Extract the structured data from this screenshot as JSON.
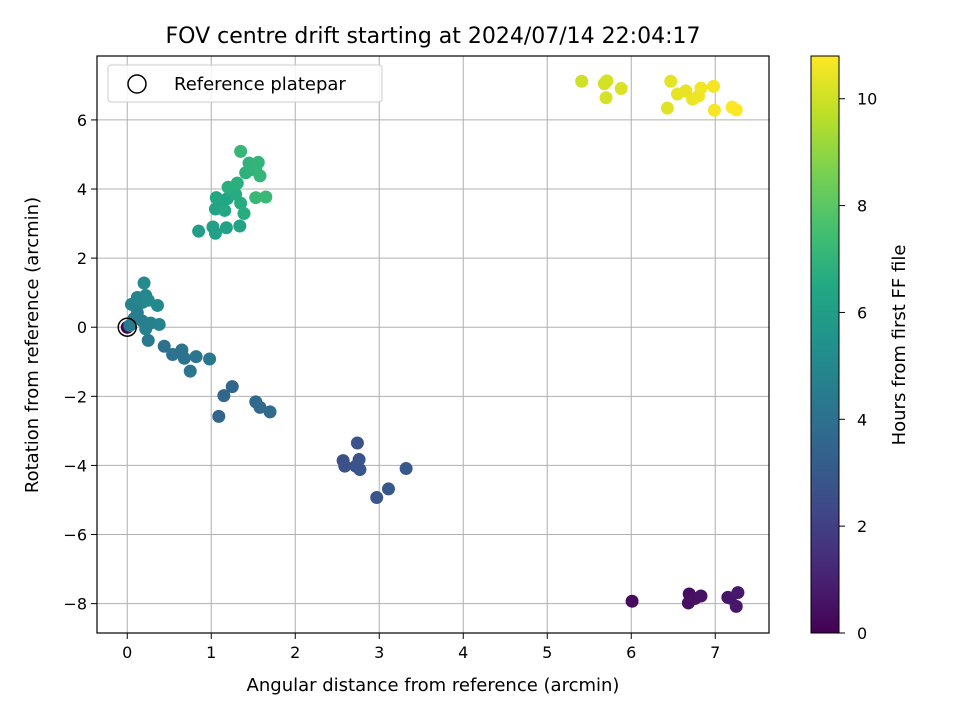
{
  "chart_data": {
    "type": "scatter",
    "title": "FOV centre drift starting at 2024/07/14 22:04:17",
    "xlabel": "Angular distance from reference (arcmin)",
    "ylabel": "Rotation from reference (arcmin)",
    "xlim": [
      -0.36,
      7.64
    ],
    "ylim": [
      -8.85,
      7.85
    ],
    "xticks": [
      0,
      1,
      2,
      3,
      4,
      5,
      6,
      7
    ],
    "yticks": [
      -8,
      -6,
      -4,
      -2,
      0,
      2,
      4,
      6
    ],
    "xtick_labels": [
      "0",
      "1",
      "2",
      "3",
      "4",
      "5",
      "6",
      "7"
    ],
    "ytick_labels": [
      "−8",
      "−6",
      "−4",
      "−2",
      "0",
      "2",
      "4",
      "6"
    ],
    "grid": true,
    "legend": {
      "placement": "top-left",
      "entries": [
        "Reference platepar"
      ]
    },
    "reference_point": {
      "x": 0,
      "y": 0,
      "label": "Reference platepar"
    },
    "colorbar": {
      "label": "Hours from first FF file",
      "colormap": "viridis",
      "range": [
        0,
        10.8
      ],
      "ticks": [
        0,
        2,
        4,
        6,
        8,
        10
      ],
      "tick_labels": [
        "0",
        "2",
        "4",
        "6",
        "8",
        "10"
      ]
    },
    "points": [
      [
        0.0,
        0.0,
        0.05
      ],
      [
        6.01,
        -7.93,
        0.3
      ],
      [
        6.69,
        -7.72,
        0.4
      ],
      [
        6.68,
        -7.98,
        0.45
      ],
      [
        6.76,
        -7.85,
        0.5
      ],
      [
        6.83,
        -7.78,
        0.55
      ],
      [
        7.15,
        -7.82,
        0.6
      ],
      [
        7.18,
        -7.84,
        0.65
      ],
      [
        7.25,
        -8.08,
        0.7
      ],
      [
        7.27,
        -7.68,
        0.75
      ],
      [
        2.57,
        -3.86,
        2.6
      ],
      [
        2.59,
        -4.02,
        2.65
      ],
      [
        2.74,
        -3.35,
        2.7
      ],
      [
        2.76,
        -3.83,
        2.75
      ],
      [
        2.72,
        -4.02,
        2.8
      ],
      [
        2.77,
        -4.12,
        2.85
      ],
      [
        2.97,
        -4.93,
        2.9
      ],
      [
        3.11,
        -4.68,
        2.95
      ],
      [
        3.32,
        -4.09,
        3.0
      ],
      [
        1.09,
        -2.58,
        3.5
      ],
      [
        1.15,
        -1.98,
        3.55
      ],
      [
        1.25,
        -1.72,
        3.6
      ],
      [
        1.53,
        -2.16,
        3.65
      ],
      [
        1.58,
        -2.32,
        3.7
      ],
      [
        1.7,
        -2.45,
        3.75
      ],
      [
        0.44,
        -0.55,
        4.0
      ],
      [
        0.54,
        -0.79,
        4.05
      ],
      [
        0.65,
        -0.66,
        4.1
      ],
      [
        0.68,
        -0.9,
        4.15
      ],
      [
        0.75,
        -1.27,
        4.2
      ],
      [
        0.82,
        -0.85,
        4.25
      ],
      [
        0.98,
        -0.92,
        4.3
      ],
      [
        0.25,
        -0.38,
        4.35
      ],
      [
        0.03,
        0.05,
        4.4
      ],
      [
        0.08,
        0.25,
        4.5
      ],
      [
        0.12,
        0.42,
        4.55
      ],
      [
        0.18,
        0.18,
        4.6
      ],
      [
        0.22,
        -0.05,
        4.65
      ],
      [
        0.28,
        0.12,
        4.7
      ],
      [
        0.38,
        0.08,
        4.75
      ],
      [
        0.05,
        0.66,
        4.8
      ],
      [
        0.12,
        0.86,
        4.85
      ],
      [
        0.18,
        0.72,
        4.9
      ],
      [
        0.22,
        0.92,
        4.95
      ],
      [
        0.25,
        0.78,
        5.0
      ],
      [
        0.36,
        0.63,
        5.05
      ],
      [
        0.2,
        1.28,
        5.1
      ],
      [
        0.85,
        2.78,
        6.0
      ],
      [
        1.02,
        2.9,
        6.1
      ],
      [
        1.05,
        2.72,
        6.15
      ],
      [
        1.18,
        2.88,
        6.2
      ],
      [
        1.34,
        2.93,
        6.25
      ],
      [
        1.05,
        3.42,
        6.3
      ],
      [
        1.12,
        3.62,
        6.35
      ],
      [
        1.19,
        3.72,
        6.4
      ],
      [
        1.06,
        3.75,
        6.45
      ],
      [
        1.16,
        3.38,
        6.5
      ],
      [
        1.23,
        3.95,
        6.55
      ],
      [
        1.29,
        3.85,
        6.6
      ],
      [
        1.35,
        3.59,
        6.65
      ],
      [
        1.39,
        3.29,
        6.7
      ],
      [
        1.2,
        4.05,
        6.75
      ],
      [
        1.31,
        4.17,
        6.8
      ],
      [
        1.41,
        4.47,
        6.85
      ],
      [
        1.47,
        4.56,
        6.9
      ],
      [
        1.45,
        4.75,
        6.95
      ],
      [
        1.53,
        4.6,
        7.0
      ],
      [
        1.56,
        4.77,
        7.05
      ],
      [
        1.58,
        4.38,
        7.1
      ],
      [
        1.35,
        5.09,
        7.15
      ],
      [
        1.53,
        3.75,
        7.2
      ],
      [
        1.65,
        3.77,
        7.25
      ],
      [
        5.41,
        7.12,
        10.0
      ],
      [
        5.68,
        7.05,
        10.05
      ],
      [
        5.71,
        7.13,
        10.1
      ],
      [
        5.7,
        6.64,
        10.15
      ],
      [
        5.88,
        6.91,
        10.2
      ],
      [
        6.43,
        6.34,
        10.3
      ],
      [
        6.47,
        7.12,
        10.35
      ],
      [
        6.55,
        6.75,
        10.4
      ],
      [
        6.65,
        6.84,
        10.45
      ],
      [
        6.73,
        6.6,
        10.5
      ],
      [
        6.8,
        6.69,
        10.55
      ],
      [
        6.83,
        6.92,
        10.6
      ],
      [
        6.98,
        6.97,
        10.65
      ],
      [
        6.99,
        6.28,
        10.7
      ],
      [
        7.2,
        6.37,
        10.75
      ],
      [
        7.25,
        6.29,
        10.8
      ]
    ]
  }
}
